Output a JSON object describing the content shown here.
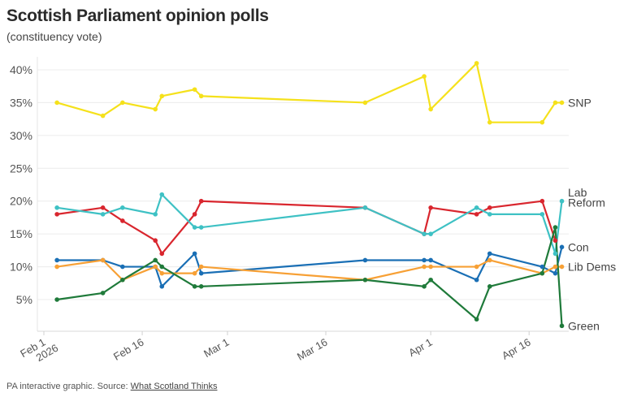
{
  "header": {
    "title": "Scottish Parliament opinion polls",
    "subtitle": "(constituency vote)"
  },
  "footer": {
    "prefix": "PA interactive graphic. Source: ",
    "source_link": "What Scotland Thinks"
  },
  "chart_data": {
    "type": "line",
    "title": "Scottish Parliament opinion polls",
    "subtitle": "(constituency vote)",
    "xlabel": "",
    "ylabel": "",
    "ylim": [
      0,
      41
    ],
    "y_ticks": [
      5,
      10,
      15,
      20,
      25,
      30,
      35,
      40
    ],
    "y_tick_labels": [
      "5%",
      "10%",
      "15%",
      "20%",
      "25%",
      "30%",
      "35%",
      "40%"
    ],
    "x_ticks": [
      {
        "date": "2026-02-01",
        "label": [
          "Feb 1",
          "2026"
        ]
      },
      {
        "date": "2026-02-16",
        "label": [
          "Feb 16"
        ]
      },
      {
        "date": "2026-03-01",
        "label": [
          "Mar 1"
        ]
      },
      {
        "date": "2026-03-16",
        "label": [
          "Mar 16"
        ]
      },
      {
        "date": "2026-04-01",
        "label": [
          "Apr 1"
        ]
      },
      {
        "date": "2026-04-16",
        "label": [
          "Apr 16"
        ]
      }
    ],
    "grid": true,
    "legend": "inline-right",
    "x": [
      "2026-02-03",
      "2026-02-10",
      "2026-02-13",
      "2026-02-18",
      "2026-02-19",
      "2026-02-24",
      "2026-02-25",
      "2026-03-22",
      "2026-03-31",
      "2026-04-01",
      "2026-04-08",
      "2026-04-10",
      "2026-04-18",
      "2026-04-20",
      "2026-04-21"
    ],
    "series": [
      {
        "name": "SNP",
        "color": "#f5e11b",
        "values": [
          35,
          33,
          35,
          34,
          36,
          37,
          36,
          35,
          39,
          34,
          41,
          32,
          32,
          35,
          35
        ]
      },
      {
        "name": "Lab",
        "color": "#d9262e",
        "values": [
          18,
          19,
          17,
          14,
          12,
          18,
          20,
          19,
          15,
          19,
          18,
          19,
          20,
          14,
          null
        ]
      },
      {
        "name": "Reform",
        "color": "#3ec1c4",
        "values": [
          19,
          18,
          19,
          18,
          21,
          16,
          16,
          19,
          15,
          15,
          19,
          18,
          18,
          12,
          20
        ]
      },
      {
        "name": "Con",
        "color": "#1a6fb5",
        "values": [
          11,
          11,
          10,
          10,
          7,
          12,
          9,
          11,
          11,
          11,
          8,
          12,
          10,
          9,
          13
        ]
      },
      {
        "name": "Lib Dems",
        "color": "#f7a035",
        "values": [
          10,
          11,
          8,
          10,
          9,
          9,
          10,
          8,
          10,
          10,
          10,
          11,
          9,
          10,
          10
        ]
      },
      {
        "name": "Green",
        "color": "#1f7a3a",
        "values": [
          5,
          6,
          8,
          11,
          10,
          7,
          7,
          8,
          7,
          8,
          2,
          7,
          9,
          16,
          1
        ]
      }
    ],
    "end_labels": [
      {
        "series": "SNP",
        "text": "SNP",
        "value": 35
      },
      {
        "series": "Lab",
        "text": "Lab",
        "value": 21.3
      },
      {
        "series": "Reform",
        "text": "Reform",
        "value": 19.8
      },
      {
        "series": "Con",
        "text": "Con",
        "value": 13
      },
      {
        "series": "Lib Dems",
        "text": "Lib Dems",
        "value": 10
      },
      {
        "series": "Green",
        "text": "Green",
        "value": 1
      }
    ]
  }
}
